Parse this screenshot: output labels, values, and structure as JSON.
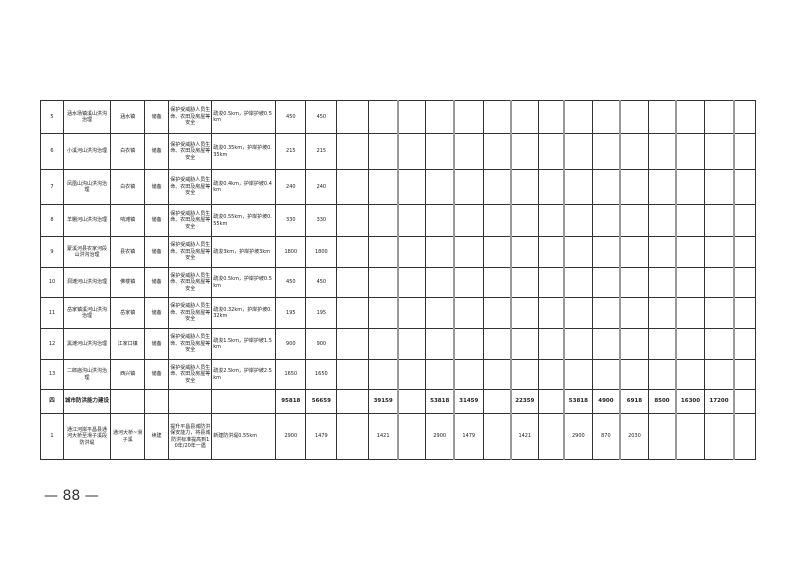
{
  "rows": [
    {
      "no": "5",
      "name": "涵水场镇溪山洪沟治理",
      "location": "涵水镇",
      "type": "储备",
      "purpose": "保护受威胁人员生命、农田及房屋等安全",
      "scale": "疏浚0.5km，护岸护坡0.5km",
      "v": [
        "450",
        "450",
        "",
        "",
        "",
        "",
        "",
        "",
        "",
        "",
        "",
        "",
        "",
        "",
        "",
        "",
        ""
      ]
    },
    {
      "no": "6",
      "name": "小溪河山洪沟治理",
      "location": "白衣镇",
      "type": "储备",
      "purpose": "保护受威胁人员生命、农田及房屋等安全",
      "scale": "疏浚0.35km，护岸护坡0.35km",
      "v": [
        "215",
        "215",
        "",
        "",
        "",
        "",
        "",
        "",
        "",
        "",
        "",
        "",
        "",
        "",
        "",
        "",
        ""
      ]
    },
    {
      "no": "7",
      "name": "凤凰山沟山洪沟治理",
      "location": "白衣镇",
      "type": "储备",
      "purpose": "保护受威胁人员生命、农田及房屋等安全",
      "scale": "疏浚0.4km，护岸护坡0.4km",
      "v": [
        "240",
        "240",
        "",
        "",
        "",
        "",
        "",
        "",
        "",
        "",
        "",
        "",
        "",
        "",
        "",
        "",
        ""
      ]
    },
    {
      "no": "8",
      "name": "羊棚河山洪沟治理",
      "location": "响滩镇",
      "type": "储备",
      "purpose": "保护受威胁人员生命、农田及房屋等安全",
      "scale": "疏浚0.55km，护岸护坡0.55km",
      "v": [
        "330",
        "330",
        "",
        "",
        "",
        "",
        "",
        "",
        "",
        "",
        "",
        "",
        "",
        "",
        "",
        "",
        ""
      ]
    },
    {
      "no": "9",
      "name": "蒙溪河县农家河段山洪沟治理",
      "location": "县农镇",
      "type": "储备",
      "purpose": "保护受威胁人员生命、农田及房屋等安全",
      "scale": "疏浚3km，护岸护坡3km",
      "v": [
        "1800",
        "1800",
        "",
        "",
        "",
        "",
        "",
        "",
        "",
        "",
        "",
        "",
        "",
        "",
        "",
        "",
        ""
      ]
    },
    {
      "no": "10",
      "name": "洞滩河山洪沟治理",
      "location": "佛楼镇",
      "type": "储备",
      "purpose": "保护受威胁人员生命、农田及房屋等安全",
      "scale": "疏浚0.5km，护岸护坡0.5km",
      "v": [
        "450",
        "450",
        "",
        "",
        "",
        "",
        "",
        "",
        "",
        "",
        "",
        "",
        "",
        "",
        "",
        "",
        ""
      ]
    },
    {
      "no": "11",
      "name": "岳家镇溪河山洪沟治理",
      "location": "岳家镇",
      "type": "储备",
      "purpose": "保护受威胁人员生命、农田及房屋等安全",
      "scale": "疏浚0.32km，护岸护坡0.32km",
      "v": [
        "195",
        "195",
        "",
        "",
        "",
        "",
        "",
        "",
        "",
        "",
        "",
        "",
        "",
        "",
        "",
        "",
        ""
      ]
    },
    {
      "no": "12",
      "name": "黑滩河山洪沟治理",
      "location": "江家口镇",
      "type": "储备",
      "purpose": "保护受威胁人员生命、农田及房屋等安全",
      "scale": "疏浚1.5km，护岸护坡1.5km",
      "v": [
        "900",
        "900",
        "",
        "",
        "",
        "",
        "",
        "",
        "",
        "",
        "",
        "",
        "",
        "",
        "",
        "",
        ""
      ]
    },
    {
      "no": "13",
      "name": "二郎庙沟山洪沟治理",
      "location": "西兴镇",
      "type": "储备",
      "purpose": "保护受威胁人员生命、农田及房屋等安全",
      "scale": "疏浚2.5km，护岸护坡2.5km",
      "v": [
        "1650",
        "1650",
        "",
        "",
        "",
        "",
        "",
        "",
        "",
        "",
        "",
        "",
        "",
        "",
        "",
        "",
        ""
      ]
    }
  ],
  "section": {
    "no": "四",
    "name": "城市防洪能力建设",
    "v": [
      "95818",
      "56659",
      "",
      "39159",
      "",
      "53818",
      "31459",
      "",
      "22359",
      "",
      "53818",
      "4900",
      "6918",
      "8500",
      "16300",
      "17200",
      ""
    ]
  },
  "last_row": {
    "no": "1",
    "name": "通江河岸平昌县通河大桥至滑子溪段防洪堤",
    "location": "通河大桥~滑子溪",
    "type": "续建",
    "purpose": "提升平昌县城防洪保安能力，将县城防洪标准提高到10年/20年一遇",
    "scale": "新建防洪堤0.55km",
    "v": [
      "2900",
      "1479",
      "",
      "1421",
      "",
      "2900",
      "1479",
      "",
      "1421",
      "",
      "2900",
      "870",
      "2030",
      "",
      "",
      "",
      ""
    ]
  },
  "page_number": "— 88 —"
}
